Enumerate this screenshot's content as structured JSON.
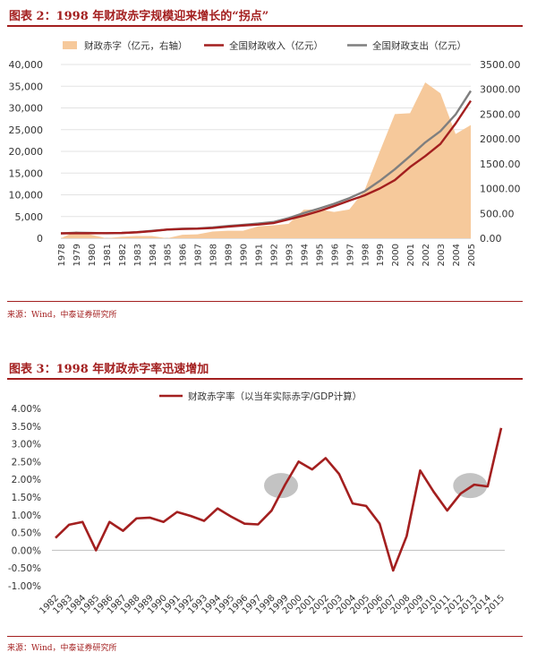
{
  "figure2": {
    "title": "图表 2：1998 年财政赤字规模迎来增长的“拐点”",
    "source": "来源：Wind，中泰证券研究所",
    "chart_data": {
      "type": "area+line",
      "categories": [
        "1978",
        "1979",
        "1980",
        "1981",
        "1982",
        "1983",
        "1984",
        "1985",
        "1986",
        "1987",
        "1988",
        "1989",
        "1990",
        "1991",
        "1992",
        "1993",
        "1994",
        "1995",
        "1996",
        "1997",
        "1998",
        "1999",
        "2000",
        "2001",
        "2002",
        "2003",
        "2004",
        "2005"
      ],
      "series": [
        {
          "name": "财政赤字（亿元，右轴）",
          "type": "area",
          "axis": "right",
          "color": "#f6c99b",
          "values": [
            0,
            140,
            70,
            0,
            30,
            45,
            45,
            0,
            70,
            80,
            135,
            150,
            150,
            240,
            260,
            290,
            575,
            580,
            530,
            580,
            960,
            1740,
            2500,
            2520,
            3140,
            2920,
            2100,
            2280
          ]
        },
        {
          "name": "全国财政收入（亿元）",
          "type": "line",
          "axis": "left",
          "color": "#a31f1f",
          "values": [
            1132,
            1146,
            1160,
            1176,
            1212,
            1367,
            1643,
            2005,
            2122,
            2199,
            2357,
            2665,
            2937,
            3149,
            3483,
            4349,
            5218,
            6242,
            7408,
            8651,
            9876,
            11444,
            13395,
            16386,
            18904,
            21715,
            26396,
            31649
          ]
        },
        {
          "name": "全国财政支出（亿元）",
          "type": "line",
          "axis": "left",
          "color": "#7f7f7f",
          "values": [
            1122,
            1282,
            1229,
            1139,
            1230,
            1410,
            1701,
            2004,
            2205,
            2262,
            2491,
            2824,
            3084,
            3387,
            3742,
            4642,
            5793,
            6824,
            7938,
            9234,
            10798,
            13188,
            15887,
            18903,
            22053,
            24650,
            28487,
            33930
          ]
        }
      ],
      "yleft": {
        "ticks": [
          "0",
          "5,000",
          "10,000",
          "15,000",
          "20,000",
          "25,000",
          "30,000",
          "35,000",
          "40,000"
        ],
        "min": 0,
        "max": 40000
      },
      "yright": {
        "ticks": [
          "0.00",
          "500.00",
          "1000.00",
          "1500.00",
          "2000.00",
          "2500.00",
          "3000.00",
          "3500.00"
        ],
        "min": 0,
        "max": 3500
      },
      "legend": "top"
    }
  },
  "figure3": {
    "title": "图表 3：1998 年财政赤字率迅速增加",
    "source": "来源：Wind，中泰证券研究所",
    "chart_data": {
      "type": "line",
      "categories": [
        "1982",
        "1983",
        "1984",
        "1985",
        "1986",
        "1987",
        "1988",
        "1989",
        "1990",
        "1991",
        "1992",
        "1993",
        "1994",
        "1995",
        "1996",
        "1997",
        "1998",
        "1999",
        "2000",
        "2001",
        "2002",
        "2003",
        "2004",
        "2005",
        "2006",
        "2007",
        "2008",
        "2009",
        "2010",
        "2011",
        "2012",
        "2013",
        "2014",
        "2015"
      ],
      "series": [
        {
          "name": "财政赤字率（以当年实际赤字/GDP计算）",
          "color": "#a31f1f",
          "values": [
            0.35,
            0.72,
            0.8,
            0.0,
            0.8,
            0.55,
            0.9,
            0.92,
            0.8,
            1.08,
            0.97,
            0.83,
            1.18,
            0.95,
            0.75,
            0.73,
            1.12,
            1.85,
            2.5,
            2.28,
            2.6,
            2.15,
            1.32,
            1.25,
            0.75,
            -0.57,
            0.4,
            2.25,
            1.65,
            1.12,
            1.6,
            1.85,
            1.8,
            3.45
          ]
        }
      ],
      "yaxis": {
        "ticks": [
          "-1.00%",
          "-0.50%",
          "0.00%",
          "0.50%",
          "1.00%",
          "1.50%",
          "2.00%",
          "2.50%",
          "3.00%",
          "3.50%",
          "4.00%"
        ],
        "min": -1.0,
        "max": 4.0
      },
      "highlights": [
        "1999",
        "2013"
      ],
      "legend": "top-center",
      "grid": false
    }
  }
}
